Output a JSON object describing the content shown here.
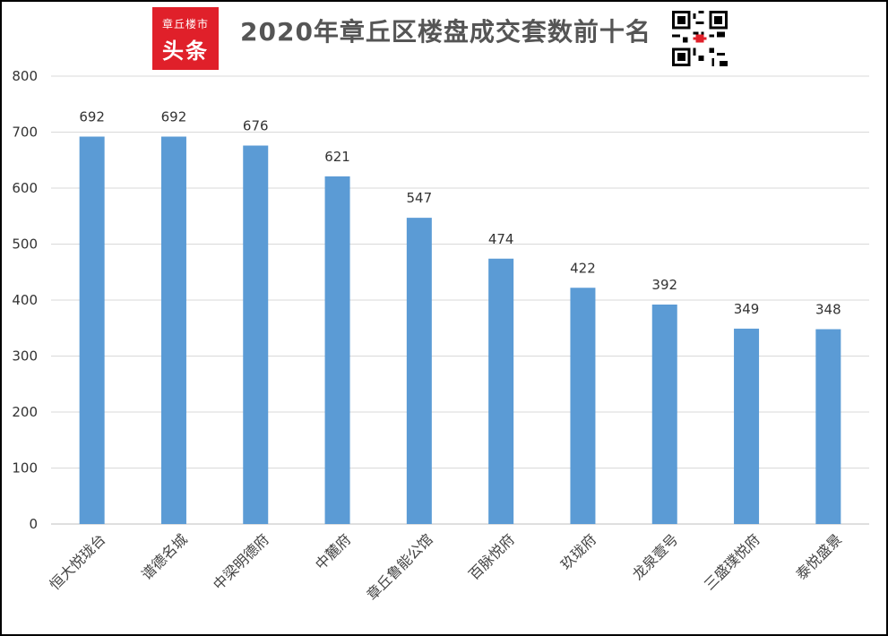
{
  "header": {
    "logo_line1": "章丘楼市",
    "logo_line2": "头条",
    "title": "2020年章丘区楼盘成交套数前十名"
  },
  "chart_data": {
    "type": "bar",
    "title": "2020年章丘区楼盘成交套数前十名",
    "categories": [
      "恒大悦珑台",
      "谱德名城",
      "中梁明德府",
      "中麓府",
      "章丘鲁能公馆",
      "百脉悦府",
      "玖珑府",
      "龙泉壹号",
      "三盛璞悦府",
      "泰悦盛景"
    ],
    "values": [
      692,
      692,
      676,
      621,
      547,
      474,
      422,
      392,
      349,
      348
    ],
    "ylim": [
      0,
      800
    ],
    "yticks": [
      0,
      100,
      200,
      300,
      400,
      500,
      600,
      700,
      800
    ],
    "grid": true,
    "bar_color": "#5b9bd5",
    "xlabel": "",
    "ylabel": ""
  }
}
